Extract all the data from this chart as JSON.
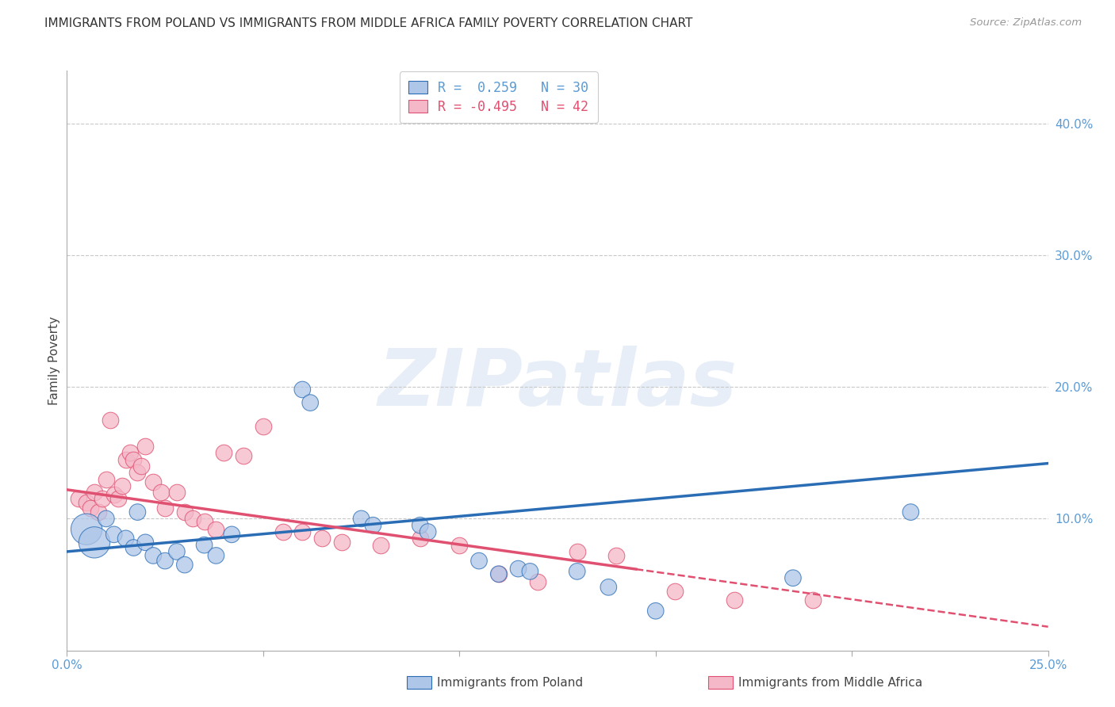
{
  "title": "IMMIGRANTS FROM POLAND VS IMMIGRANTS FROM MIDDLE AFRICA FAMILY POVERTY CORRELATION CHART",
  "source": "Source: ZipAtlas.com",
  "ylabel": "Family Poverty",
  "xlim": [
    0.0,
    0.25
  ],
  "ylim": [
    0.0,
    0.44
  ],
  "ytick_vals": [
    0.1,
    0.2,
    0.3,
    0.4
  ],
  "ytick_labels": [
    "10.0%",
    "20.0%",
    "30.0%",
    "40.0%"
  ],
  "legend1_label": "R =  0.259   N = 30",
  "legend2_label": "R = -0.495   N = 42",
  "color_blue": "#aec6e8",
  "color_pink": "#f4b8c8",
  "line_blue": "#2a6db5",
  "line_pink": "#e05070",
  "watermark": "ZIPatlas",
  "poland_scatter": [
    [
      0.005,
      0.092
    ],
    [
      0.007,
      0.082
    ],
    [
      0.01,
      0.1
    ],
    [
      0.012,
      0.088
    ],
    [
      0.015,
      0.085
    ],
    [
      0.017,
      0.078
    ],
    [
      0.018,
      0.105
    ],
    [
      0.02,
      0.082
    ],
    [
      0.022,
      0.072
    ],
    [
      0.025,
      0.068
    ],
    [
      0.028,
      0.075
    ],
    [
      0.03,
      0.065
    ],
    [
      0.035,
      0.08
    ],
    [
      0.038,
      0.072
    ],
    [
      0.042,
      0.088
    ],
    [
      0.06,
      0.198
    ],
    [
      0.062,
      0.188
    ],
    [
      0.075,
      0.1
    ],
    [
      0.078,
      0.095
    ],
    [
      0.09,
      0.095
    ],
    [
      0.092,
      0.09
    ],
    [
      0.105,
      0.068
    ],
    [
      0.11,
      0.058
    ],
    [
      0.115,
      0.062
    ],
    [
      0.118,
      0.06
    ],
    [
      0.13,
      0.06
    ],
    [
      0.138,
      0.048
    ],
    [
      0.15,
      0.03
    ],
    [
      0.185,
      0.055
    ],
    [
      0.215,
      0.105
    ]
  ],
  "poland_big": [
    0,
    1,
    2,
    3
  ],
  "africa_scatter": [
    [
      0.003,
      0.115
    ],
    [
      0.005,
      0.112
    ],
    [
      0.006,
      0.108
    ],
    [
      0.007,
      0.12
    ],
    [
      0.008,
      0.105
    ],
    [
      0.009,
      0.115
    ],
    [
      0.01,
      0.13
    ],
    [
      0.011,
      0.175
    ],
    [
      0.012,
      0.118
    ],
    [
      0.013,
      0.115
    ],
    [
      0.014,
      0.125
    ],
    [
      0.015,
      0.145
    ],
    [
      0.016,
      0.15
    ],
    [
      0.017,
      0.145
    ],
    [
      0.018,
      0.135
    ],
    [
      0.019,
      0.14
    ],
    [
      0.02,
      0.155
    ],
    [
      0.022,
      0.128
    ],
    [
      0.024,
      0.12
    ],
    [
      0.025,
      0.108
    ],
    [
      0.028,
      0.12
    ],
    [
      0.03,
      0.105
    ],
    [
      0.032,
      0.1
    ],
    [
      0.035,
      0.098
    ],
    [
      0.038,
      0.092
    ],
    [
      0.04,
      0.15
    ],
    [
      0.045,
      0.148
    ],
    [
      0.05,
      0.17
    ],
    [
      0.055,
      0.09
    ],
    [
      0.06,
      0.09
    ],
    [
      0.065,
      0.085
    ],
    [
      0.07,
      0.082
    ],
    [
      0.08,
      0.08
    ],
    [
      0.09,
      0.085
    ],
    [
      0.1,
      0.08
    ],
    [
      0.11,
      0.058
    ],
    [
      0.12,
      0.052
    ],
    [
      0.13,
      0.075
    ],
    [
      0.14,
      0.072
    ],
    [
      0.155,
      0.045
    ],
    [
      0.17,
      0.038
    ],
    [
      0.19,
      0.038
    ]
  ],
  "poland_line": [
    [
      0.0,
      0.075
    ],
    [
      0.25,
      0.142
    ]
  ],
  "africa_line": [
    [
      0.0,
      0.122
    ],
    [
      0.25,
      0.018
    ]
  ],
  "africa_line_dashed_start": 0.145
}
